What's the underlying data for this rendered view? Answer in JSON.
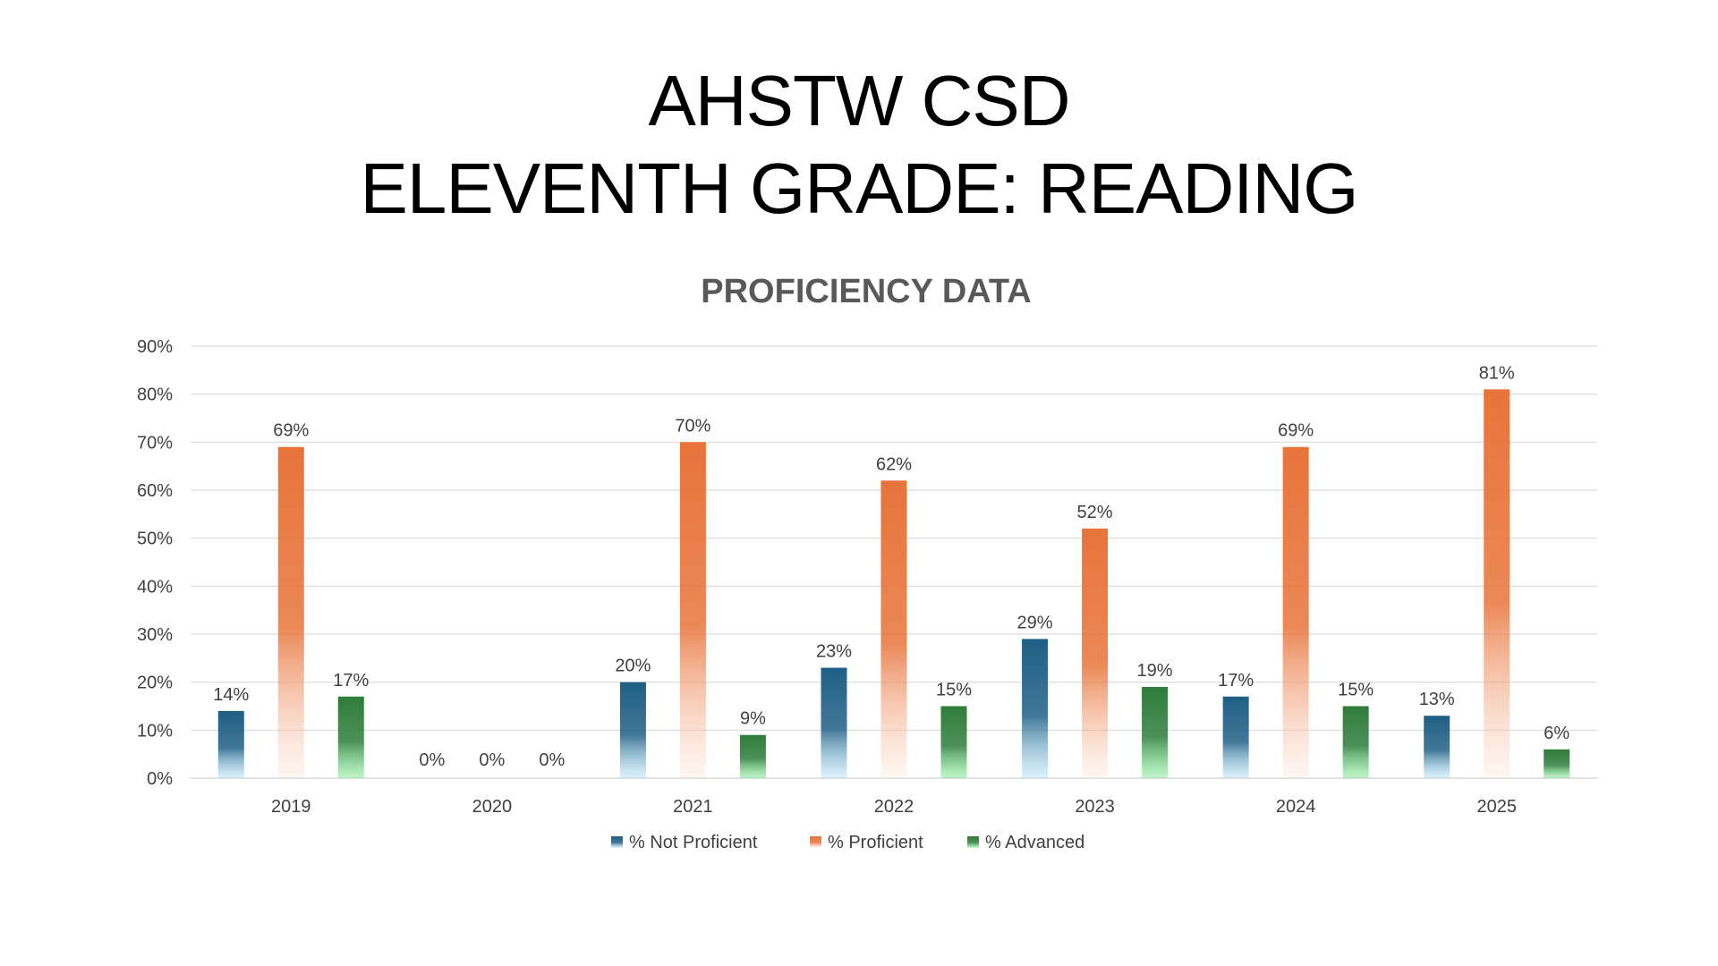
{
  "slide": {
    "title_line1": "AHSTW CSD",
    "title_line2": "ELEVENTH GRADE: READING"
  },
  "chart_data": {
    "type": "bar",
    "title": "PROFICIENCY DATA",
    "xlabel": "",
    "ylabel": "",
    "categories": [
      "2019",
      "2020",
      "2021",
      "2022",
      "2023",
      "2024",
      "2025"
    ],
    "series": [
      {
        "name": "% Not Proficient",
        "values": [
          14,
          0,
          20,
          23,
          29,
          17,
          13
        ],
        "color_top": "#1f5f85",
        "color_bottom": "#9ad6f2"
      },
      {
        "name": "% Proficient",
        "values": [
          69,
          0,
          70,
          62,
          52,
          69,
          81
        ],
        "color_top": "#e8743a",
        "color_bottom": "#fde6da"
      },
      {
        "name": "% Advanced",
        "values": [
          17,
          0,
          9,
          15,
          19,
          15,
          6
        ],
        "color_top": "#2e7d3a",
        "color_bottom": "#4ee06a"
      }
    ],
    "y_ticks": [
      "0%",
      "10%",
      "20%",
      "30%",
      "40%",
      "50%",
      "60%",
      "70%",
      "80%",
      "90%"
    ],
    "ylim": [
      0,
      90
    ],
    "value_suffix": "%",
    "grid": true,
    "legend_position": "bottom",
    "colors": {
      "title": "#595959",
      "text": "#404040",
      "grid": "#d9d9d9"
    }
  }
}
